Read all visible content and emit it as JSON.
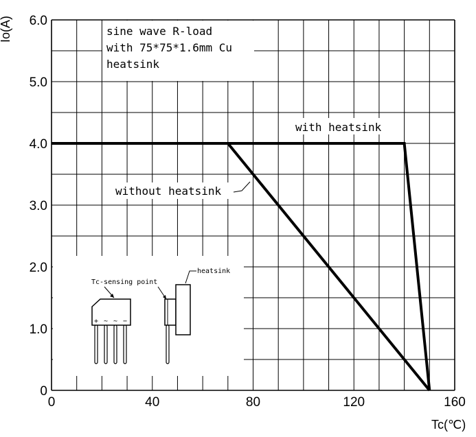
{
  "chart_data": {
    "type": "line",
    "xlabel": "Tc(℃)",
    "ylabel": "Io(A)",
    "xlim": [
      0,
      160
    ],
    "ylim": [
      0,
      6.0
    ],
    "x_ticks": [
      "0",
      "40",
      "80",
      "120",
      "160"
    ],
    "y_ticks": [
      "0",
      "1.0",
      "2.0",
      "3.0",
      "4.0",
      "5.0",
      "6.0"
    ],
    "grid": true,
    "series": [
      {
        "name": "with heatsink",
        "x": [
          0,
          140,
          150
        ],
        "y": [
          4.0,
          4.0,
          0
        ]
      },
      {
        "name": "without heatsink",
        "x": [
          0,
          70,
          150
        ],
        "y": [
          4.0,
          4.0,
          0
        ]
      }
    ],
    "annotations": {
      "conditions": [
        "sine wave R-load",
        "with 75*75*1.6mm Cu",
        "heatsink"
      ],
      "with_heatsink": "with heatsink",
      "without_heatsink": "without heatsink",
      "tc_sensing_point": "Tc-sensing point",
      "heatsink": "heatsink",
      "pin_marks": [
        "+",
        "~",
        "~",
        "−"
      ]
    }
  }
}
